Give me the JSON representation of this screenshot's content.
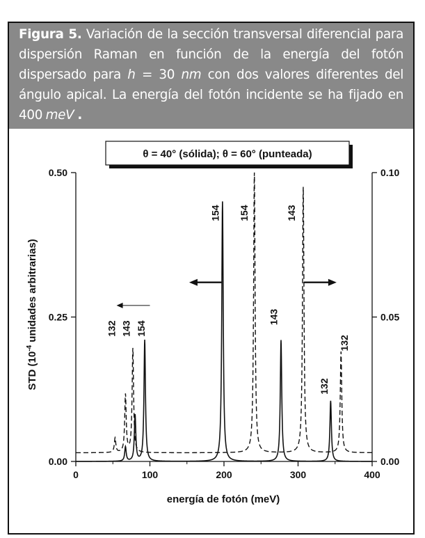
{
  "caption": {
    "label": "Figura 5.",
    "part1": " Variación de la sección transversal diferencial para dispersión Raman en función de la energía del fotón dispersado para ",
    "var_h": "h",
    "part2": " = 30 ",
    "unit_nm": "nm",
    "part3": "  con dos valores diferentes del ángulo apical. La energía del fotón incidente se ha fijado en 400 ",
    "unit_mev": "meV",
    "part4": " ."
  },
  "chart_data": {
    "type": "line",
    "legend_box": "θ = 40° (sólida); θ = 60° (punteada)",
    "xlabel": "energía de fotón (meV)",
    "ylabel_left": "STD (10⁻⁴ unidades arbitrarias)",
    "ylabel_right": "",
    "xlim": [
      0,
      400
    ],
    "ylim_left": [
      0,
      0.5
    ],
    "ylim_right": [
      0,
      0.1
    ],
    "x_ticks": [
      "0",
      "100",
      "200",
      "300",
      "400"
    ],
    "y_ticks_left": [
      "0.00",
      "0.25",
      "0.50"
    ],
    "y_ticks_right": [
      "0.00",
      "0.05",
      "0.10"
    ],
    "series": [
      {
        "style": "solid",
        "axis": "left",
        "baseline": 0.0,
        "peaks": [
          {
            "x": 67,
            "y": 0.025
          },
          {
            "x": 80,
            "y": 0.08
          },
          {
            "x": 93,
            "y": 0.21
          },
          {
            "x": 198,
            "y": 0.45
          },
          {
            "x": 277,
            "y": 0.21
          },
          {
            "x": 344,
            "y": 0.105
          }
        ]
      },
      {
        "style": "dashed",
        "axis": "right",
        "baseline": 0.003,
        "peaks": [
          {
            "x": 53,
            "y": 0.008
          },
          {
            "x": 67,
            "y": 0.023
          },
          {
            "x": 77,
            "y": 0.039
          },
          {
            "x": 241,
            "y": 0.1
          },
          {
            "x": 307,
            "y": 0.095
          },
          {
            "x": 358,
            "y": 0.038
          }
        ]
      }
    ],
    "peak_labels": [
      {
        "text": "132",
        "x": 53,
        "y": 0.23
      },
      {
        "text": "143",
        "x": 73,
        "y": 0.23
      },
      {
        "text": "154",
        "x": 93,
        "y": 0.23
      },
      {
        "text": "154",
        "x": 193,
        "y": 0.43
      },
      {
        "text": "154",
        "x": 232,
        "y": 0.43
      },
      {
        "text": "143",
        "x": 296,
        "y": 0.43
      },
      {
        "text": "143",
        "x": 272,
        "y": 0.25
      },
      {
        "text": "132",
        "x": 340,
        "y": 0.13
      },
      {
        "text": "132",
        "x": 367,
        "y": 0.205
      }
    ],
    "arrows": [
      {
        "from_x": 100,
        "to_x": 55,
        "y": 0.27,
        "style": "thin"
      },
      {
        "from_x": 197,
        "to_x": 153,
        "y": 0.31,
        "style": "bold"
      },
      {
        "from_x": 308,
        "to_x": 352,
        "y": 0.31,
        "style": "bold"
      }
    ]
  }
}
